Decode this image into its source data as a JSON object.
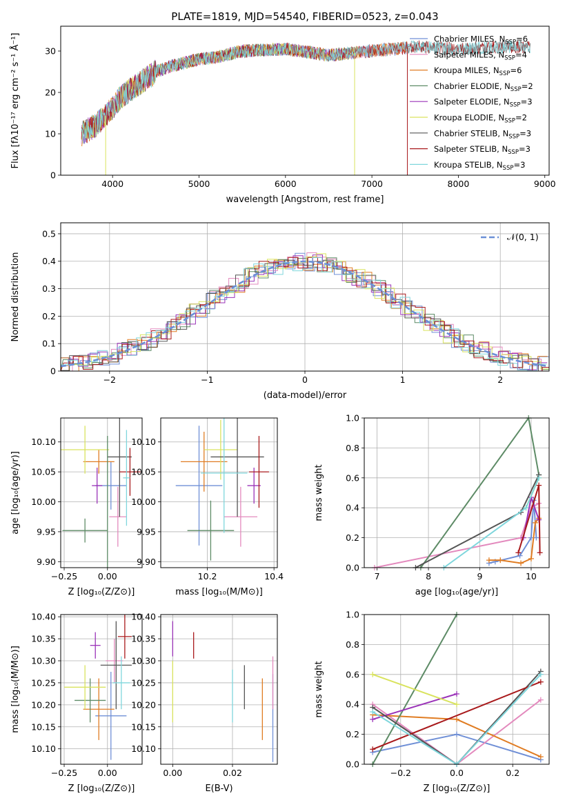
{
  "colors": {
    "Chabrier MILES": "#6f8fd6",
    "Salpeter MILES": "#e389bd",
    "Kroupa MILES": "#e07c22",
    "Chabrier ELODIE": "#5d8b66",
    "Salpeter ELODIE": "#9a32b8",
    "Kroupa ELODIE": "#d9e35d",
    "Chabrier STELIB": "#555555",
    "Salpeter STELIB": "#a8191b",
    "Kroupa STELIB": "#7fd6dc",
    "normal": "#6a8fd6"
  },
  "chart_data": [
    {
      "id": "spectrum",
      "type": "line",
      "title": "PLATE=1819, MJD=54540, FIBERID=0523, z=0.043",
      "xlabel": "wavelength [Angstrom, rest frame]",
      "ylabel": "Flux [fλ10⁻¹⁷ erg cm⁻² s⁻¹ Å⁻¹]",
      "xlim": [
        3400,
        9050
      ],
      "ylim": [
        0,
        36
      ],
      "xticks": [
        4000,
        5000,
        6000,
        7000,
        8000,
        9000
      ],
      "yticks": [
        0,
        10,
        20,
        30
      ],
      "legend": [
        {
          "name": "Chabrier MILES",
          "label": "Chabrier MILES, N",
          "sub": "SSP",
          "n": "=6"
        },
        {
          "name": "Salpeter MILES",
          "label": "Salpeter MILES, N",
          "sub": "SSP",
          "n": "=4"
        },
        {
          "name": "Kroupa MILES",
          "label": "Kroupa MILES, N",
          "sub": "SSP",
          "n": "=6"
        },
        {
          "name": "Chabrier ELODIE",
          "label": "Chabrier ELODIE, N",
          "sub": "SSP",
          "n": "=2"
        },
        {
          "name": "Salpeter ELODIE",
          "label": "Salpeter ELODIE, N",
          "sub": "SSP",
          "n": "=3"
        },
        {
          "name": "Kroupa ELODIE",
          "label": "Kroupa ELODIE, N",
          "sub": "SSP",
          "n": "=2"
        },
        {
          "name": "Chabrier STELIB",
          "label": "Chabrier STELIB, N",
          "sub": "SSP",
          "n": "=3"
        },
        {
          "name": "Salpeter STELIB",
          "label": "Salpeter STELIB, N",
          "sub": "SSP",
          "n": "=3"
        },
        {
          "name": "Kroupa STELIB",
          "label": "Kroupa STELIB, N",
          "sub": "SSP",
          "n": "=3"
        }
      ],
      "continuum": [
        [
          3640,
          10
        ],
        [
          3800,
          12
        ],
        [
          3950,
          15
        ],
        [
          4100,
          19
        ],
        [
          4300,
          22
        ],
        [
          4500,
          25
        ],
        [
          4700,
          26.5
        ],
        [
          5000,
          28
        ],
        [
          5200,
          28.5
        ],
        [
          5500,
          30
        ],
        [
          6000,
          30.5
        ],
        [
          6500,
          29
        ],
        [
          7000,
          30
        ],
        [
          7500,
          31
        ],
        [
          8000,
          30.5
        ],
        [
          8500,
          31
        ],
        [
          8830,
          31
        ]
      ],
      "endpoints": [
        {
          "name": "Chabrier MILES",
          "end": 7410
        },
        {
          "name": "Salpeter MILES",
          "end": 7410
        },
        {
          "name": "Kroupa MILES",
          "end": 7410
        },
        {
          "name": "Chabrier ELODIE",
          "end": 6800
        },
        {
          "name": "Salpeter ELODIE",
          "end": 6800
        },
        {
          "name": "Kroupa ELODIE",
          "end": 6800
        },
        {
          "name": "Chabrier STELIB",
          "end": 8830
        },
        {
          "name": "Salpeter STELIB",
          "end": 8830
        },
        {
          "name": "Kroupa STELIB",
          "end": 8830
        }
      ],
      "drops": [
        {
          "x": 3920,
          "name": "Kroupa ELODIE"
        },
        {
          "x": 6800,
          "name": "Kroupa ELODIE"
        },
        {
          "x": 7410,
          "name": "Salpeter STELIB"
        }
      ],
      "grid": false,
      "legend_position": "upper-right"
    },
    {
      "id": "residuals",
      "type": "bar",
      "xlabel": "(data-model)/error",
      "ylabel": "Normed distribution",
      "xlim": [
        -2.5,
        2.5
      ],
      "ylim": [
        0,
        0.54
      ],
      "xticks": [
        -2,
        -1,
        0,
        1,
        2
      ],
      "yticks": [
        0.0,
        0.1,
        0.2,
        0.3,
        0.4,
        0.5
      ],
      "legend": [
        {
          "name": "normal",
          "label": "𝒩(0, 1)"
        }
      ],
      "legend_position": "upper-right",
      "grid": true,
      "bin_width": 0.1,
      "bin_start": -2.5,
      "series_offsets": [
        0,
        0.02,
        -0.015,
        0.025,
        -0.02,
        0.015,
        -0.01,
        0.03,
        -0.025
      ]
    },
    {
      "id": "age_vs_Z",
      "type": "scatter",
      "xlabel": "Z [log₁₀(Z/Z⊙)]",
      "ylabel": "age  [log₁₀(age/yr)]",
      "xlim": [
        -0.27,
        0.2
      ],
      "ylim": [
        9.89,
        10.14
      ],
      "xticks": [
        "-0.25",
        "0.00"
      ],
      "xtick_values": [
        -0.25,
        0
      ],
      "yticks": [
        "9.90",
        "9.95",
        "10.00",
        "10.05",
        "10.10"
      ],
      "ytick_values": [
        9.9,
        9.95,
        10.0,
        10.05,
        10.1
      ],
      "points": [
        {
          "name": "Chabrier MILES",
          "x": 0.02,
          "y": 10.027,
          "xerr": 0.09,
          "yerr": 0.04
        },
        {
          "name": "Salpeter MILES",
          "x": 0.06,
          "y": 9.975,
          "xerr": 0.05,
          "yerr": 0.05
        },
        {
          "name": "Kroupa MILES",
          "x": -0.05,
          "y": 10.067,
          "xerr": 0.09,
          "yerr": 0.02
        },
        {
          "name": "Chabrier ELODIE",
          "x": -0.13,
          "y": 9.952,
          "xerr": 0.13,
          "yerr": 0.02
        },
        {
          "name": "Salpeter ELODIE",
          "x": -0.06,
          "y": 10.027,
          "xerr": 0.03,
          "yerr": 0.03
        },
        {
          "name": "Kroupa ELODIE",
          "x": -0.13,
          "y": 10.087,
          "xerr": 0.14,
          "yerr": 0.04
        },
        {
          "name": "Chabrier STELIB",
          "x": 0.07,
          "y": 10.075,
          "xerr": 0.07,
          "yerr": 0.1
        },
        {
          "name": "Salpeter STELIB",
          "x": 0.13,
          "y": 10.05,
          "xerr": 0.06,
          "yerr": 0.04
        },
        {
          "name": "Kroupa STELIB",
          "x": 0.11,
          "y": 10.04,
          "xerr": 0.02,
          "yerr": 0.08
        },
        {
          "name": "Chabrier ELODIE",
          "x": 0.0,
          "y": 10.0,
          "xerr": 0.0,
          "yerr": 0.11
        }
      ],
      "grid": true
    },
    {
      "id": "age_vs_mass",
      "type": "scatter",
      "xlabel": "mass [log₁₀(M/M⊙)]",
      "xlim": [
        10.06,
        10.41
      ],
      "ylim": [
        9.89,
        10.14
      ],
      "xticks": [
        "10.2",
        "10.4"
      ],
      "xtick_values": [
        10.2,
        10.4
      ],
      "yticks": [
        "9.90",
        "9.95",
        "10.00",
        "10.05",
        "10.10"
      ],
      "ytick_values": [
        9.9,
        9.95,
        10.0,
        10.05,
        10.1
      ],
      "points": [
        {
          "name": "Chabrier MILES",
          "x": 10.175,
          "y": 10.027,
          "xerr": 0.07,
          "yerr": 0.1
        },
        {
          "name": "Salpeter MILES",
          "x": 10.3,
          "y": 9.975,
          "xerr": 0.05,
          "yerr": 0.05
        },
        {
          "name": "Kroupa MILES",
          "x": 10.19,
          "y": 10.067,
          "xerr": 0.07,
          "yerr": 0.05
        },
        {
          "name": "Chabrier ELODIE",
          "x": 10.21,
          "y": 9.952,
          "xerr": 0.07,
          "yerr": 0.05
        },
        {
          "name": "Salpeter ELODIE",
          "x": 10.34,
          "y": 10.027,
          "xerr": 0.02,
          "yerr": 0.03
        },
        {
          "name": "Kroupa ELODIE",
          "x": 10.24,
          "y": 10.087,
          "xerr": 0.05,
          "yerr": 0.05
        },
        {
          "name": "Chabrier STELIB",
          "x": 10.29,
          "y": 10.075,
          "xerr": 0.08,
          "yerr": 0.1
        },
        {
          "name": "Salpeter STELIB",
          "x": 10.355,
          "y": 10.05,
          "xerr": 0.03,
          "yerr": 0.06
        },
        {
          "name": "Kroupa STELIB",
          "x": 10.25,
          "y": 10.048,
          "xerr": 0.07,
          "yerr": 0.1
        }
      ],
      "grid": true
    },
    {
      "id": "massweight_vs_age",
      "type": "line",
      "xlabel": "age  [log₁₀(age/yr)]",
      "ylabel": "mass weight",
      "xlim": [
        6.75,
        10.35
      ],
      "ylim": [
        0,
        1
      ],
      "xticks": [
        "7",
        "8",
        "9",
        "10"
      ],
      "xtick_values": [
        7,
        8,
        9,
        10
      ],
      "yticks": [
        "0.0",
        "0.2",
        "0.4",
        "0.6",
        "0.8",
        "1.0"
      ],
      "ytick_values": [
        0,
        0.2,
        0.4,
        0.6,
        0.8,
        1.0
      ],
      "series": [
        {
          "name": "Chabrier MILES",
          "x": [
            9.18,
            9.3,
            9.78,
            10.0,
            10.05,
            10.1
          ],
          "y": [
            0.03,
            0.04,
            0.08,
            0.2,
            0.45,
            0.2
          ]
        },
        {
          "name": "Salpeter MILES",
          "x": [
            6.95,
            9.8,
            10.0,
            10.15
          ],
          "y": [
            0.0,
            0.2,
            0.4,
            0.43
          ]
        },
        {
          "name": "Kroupa MILES",
          "x": [
            9.18,
            9.4,
            9.8,
            10.0,
            10.08,
            10.15
          ],
          "y": [
            0.05,
            0.05,
            0.03,
            0.06,
            0.3,
            0.33
          ]
        },
        {
          "name": "Chabrier ELODIE",
          "x": [
            7.85,
            9.95,
            10.15
          ],
          "y": [
            0.0,
            1.0,
            0.62
          ]
        },
        {
          "name": "Salpeter ELODIE",
          "x": [
            9.85,
            10.0,
            10.15
          ],
          "y": [
            0.2,
            0.47,
            0.32
          ]
        },
        {
          "name": "Kroupa ELODIE",
          "x": [
            9.9,
            10.15
          ],
          "y": [
            0.4,
            0.6
          ]
        },
        {
          "name": "Chabrier STELIB",
          "x": [
            7.75,
            9.8,
            10.15
          ],
          "y": [
            0.0,
            0.37,
            0.62
          ]
        },
        {
          "name": "Salpeter STELIB",
          "x": [
            9.75,
            10.15,
            10.17
          ],
          "y": [
            0.1,
            0.55,
            0.1
          ]
        },
        {
          "name": "Kroupa STELIB",
          "x": [
            8.3,
            9.9,
            10.15
          ],
          "y": [
            0.0,
            0.4,
            0.6
          ]
        }
      ],
      "grid": true
    },
    {
      "id": "mass_vs_Z",
      "type": "scatter",
      "xlabel": "Z [log₁₀(Z/Z⊙)]",
      "ylabel": "mass [log₁₀(M/M⊙)]",
      "xlim": [
        -0.27,
        0.2
      ],
      "ylim": [
        10.065,
        10.405
      ],
      "xticks": [
        "-0.25",
        "0.00"
      ],
      "xtick_values": [
        -0.25,
        0
      ],
      "yticks": [
        "10.10",
        "10.15",
        "10.20",
        "10.25",
        "10.30",
        "10.35",
        "10.40"
      ],
      "ytick_values": [
        10.1,
        10.15,
        10.2,
        10.25,
        10.3,
        10.35,
        10.4
      ],
      "points": [
        {
          "name": "Chabrier MILES",
          "x": 0.02,
          "y": 10.175,
          "xerr": 0.09,
          "yerr": 0.1
        },
        {
          "name": "Salpeter MILES",
          "x": 0.04,
          "y": 10.3,
          "xerr": 0.05,
          "yerr": 0.05
        },
        {
          "name": "Kroupa MILES",
          "x": -0.05,
          "y": 10.19,
          "xerr": 0.09,
          "yerr": 0.07
        },
        {
          "name": "Chabrier ELODIE",
          "x": -0.1,
          "y": 10.21,
          "xerr": 0.09,
          "yerr": 0.05
        },
        {
          "name": "Salpeter ELODIE",
          "x": -0.07,
          "y": 10.335,
          "xerr": 0.03,
          "yerr": 0.03
        },
        {
          "name": "Kroupa ELODIE",
          "x": -0.13,
          "y": 10.24,
          "xerr": 0.12,
          "yerr": 0.05
        },
        {
          "name": "Chabrier STELIB",
          "x": 0.05,
          "y": 10.29,
          "xerr": 0.09,
          "yerr": 0.1
        },
        {
          "name": "Salpeter STELIB",
          "x": 0.1,
          "y": 10.355,
          "xerr": 0.04,
          "yerr": 0.05
        },
        {
          "name": "Kroupa STELIB",
          "x": 0.08,
          "y": 10.25,
          "xerr": 0.05,
          "yerr": 0.06
        }
      ],
      "grid": true
    },
    {
      "id": "mass_vs_ebv",
      "type": "scatter",
      "xlabel": "E(B-V)",
      "xlim": [
        -0.004,
        0.035
      ],
      "ylim": [
        10.065,
        10.405
      ],
      "xticks": [
        "0.00",
        "0.02"
      ],
      "xtick_values": [
        0,
        0.02
      ],
      "yticks": [
        "10.10",
        "10.15",
        "10.20",
        "10.25",
        "10.30",
        "10.35",
        "10.40"
      ],
      "ytick_values": [
        10.1,
        10.15,
        10.2,
        10.25,
        10.3,
        10.35,
        10.4
      ],
      "points": [
        {
          "name": "Chabrier MILES",
          "x": 0.0335,
          "y": 10.17,
          "xerr": 0,
          "yerr": 0.1
        },
        {
          "name": "Salpeter MILES",
          "x": 0.0335,
          "y": 10.25,
          "xerr": 0,
          "yerr": 0.06
        },
        {
          "name": "Kroupa MILES",
          "x": 0.03,
          "y": 10.19,
          "xerr": 0,
          "yerr": 0.07
        },
        {
          "name": "Salpeter ELODIE",
          "x": 0.0,
          "y": 10.35,
          "xerr": 0,
          "yerr": 0.04
        },
        {
          "name": "Kroupa ELODIE",
          "x": 0.0,
          "y": 10.23,
          "xerr": 0,
          "yerr": 0.07
        },
        {
          "name": "Chabrier STELIB",
          "x": 0.024,
          "y": 10.24,
          "xerr": 0,
          "yerr": 0.05
        },
        {
          "name": "Salpeter STELIB",
          "x": 0.007,
          "y": 10.335,
          "xerr": 0,
          "yerr": 0.03
        },
        {
          "name": "Kroupa STELIB",
          "x": 0.02,
          "y": 10.22,
          "xerr": 0,
          "yerr": 0.06
        }
      ],
      "grid": true
    },
    {
      "id": "massweight_vs_Z",
      "type": "line",
      "xlabel": "Z [log₁₀(Z/Z⊙)]",
      "ylabel": "mass weight",
      "xlim": [
        -0.33,
        0.33
      ],
      "ylim": [
        0,
        1
      ],
      "xticks": [
        "-0.2",
        "0.0",
        "0.2"
      ],
      "xtick_values": [
        -0.2,
        0,
        0.2
      ],
      "yticks": [
        "0.0",
        "0.2",
        "0.4",
        "0.6",
        "0.8",
        "1.0"
      ],
      "ytick_values": [
        0,
        0.2,
        0.4,
        0.6,
        0.8,
        1.0
      ],
      "series": [
        {
          "name": "Chabrier MILES",
          "x": [
            -0.3,
            0.0,
            0.3
          ],
          "y": [
            0.08,
            0.2,
            0.03
          ]
        },
        {
          "name": "Salpeter MILES",
          "x": [
            -0.3,
            0.0,
            0.3
          ],
          "y": [
            0.4,
            0.0,
            0.43
          ]
        },
        {
          "name": "Kroupa MILES",
          "x": [
            -0.3,
            0.0,
            0.3
          ],
          "y": [
            0.33,
            0.3,
            0.05
          ]
        },
        {
          "name": "Chabrier ELODIE",
          "x": [
            -0.3,
            0.0
          ],
          "y": [
            0.0,
            1.0
          ]
        },
        {
          "name": "Salpeter ELODIE",
          "x": [
            -0.3,
            0.0
          ],
          "y": [
            0.3,
            0.47
          ]
        },
        {
          "name": "Kroupa ELODIE",
          "x": [
            -0.3,
            0.0
          ],
          "y": [
            0.6,
            0.4
          ]
        },
        {
          "name": "Chabrier STELIB",
          "x": [
            -0.3,
            0.0,
            0.3
          ],
          "y": [
            0.38,
            0.0,
            0.62
          ]
        },
        {
          "name": "Salpeter STELIB",
          "x": [
            -0.3,
            0.3
          ],
          "y": [
            0.1,
            0.55
          ]
        },
        {
          "name": "Kroupa STELIB",
          "x": [
            -0.3,
            0.0,
            0.3
          ],
          "y": [
            0.35,
            0.0,
            0.6
          ]
        }
      ],
      "grid": true
    }
  ]
}
